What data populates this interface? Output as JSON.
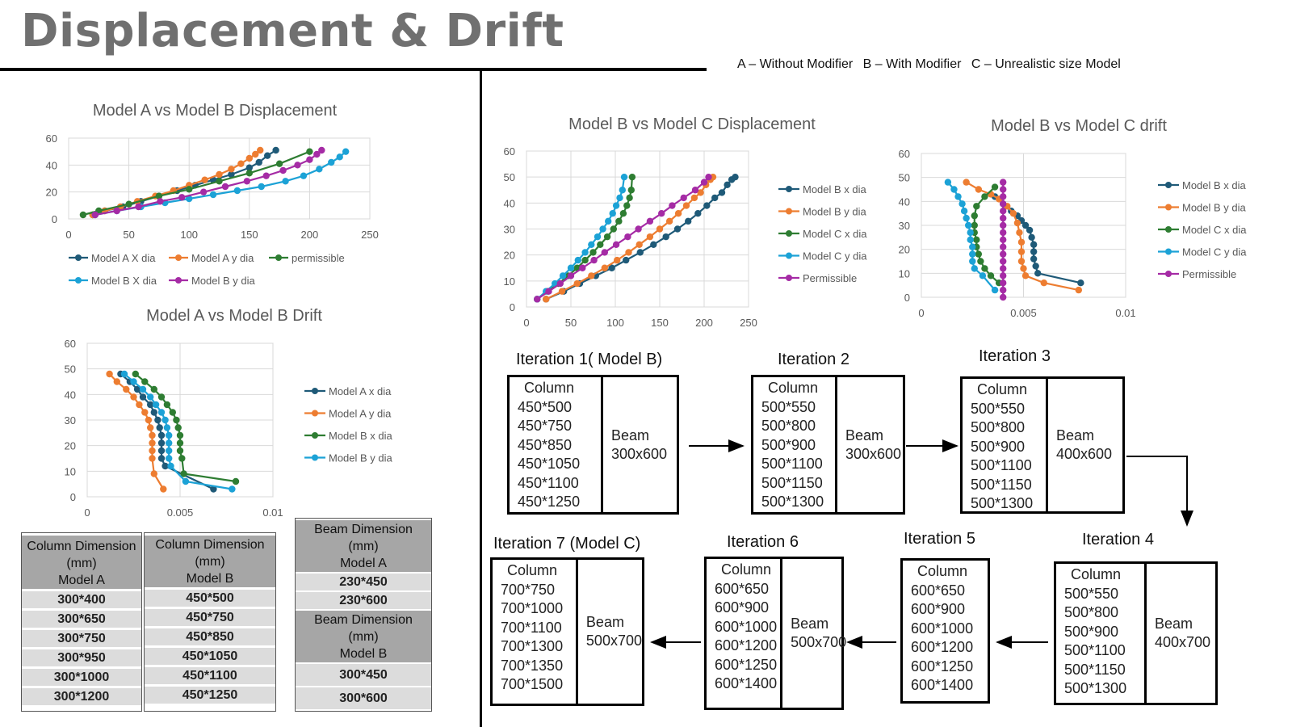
{
  "page": {
    "title": "Displacement & Drift",
    "legend": [
      "A – Without Modifier",
      "B – With Modifier",
      "C – Unrealistic size Model"
    ]
  },
  "colors": {
    "navy": "#1f5a78",
    "orange": "#ed7d31",
    "green": "#2e7d32",
    "cyan": "#1ca2d6",
    "purple": "#a52ba5",
    "grid": "#d9d9d9",
    "table_header": "#a6a6a6",
    "table_cell": "#dcdcdc"
  },
  "chart_data": [
    {
      "id": "ab_disp",
      "type": "line",
      "title": "Model A vs Model B Displacement",
      "xlim": [
        0,
        250
      ],
      "ylim": [
        0,
        60
      ],
      "xticks": [
        0,
        50,
        100,
        150,
        200,
        250
      ],
      "yticks": [
        0,
        20,
        40,
        60
      ],
      "grid": true,
      "legend_position": "bottom",
      "series": [
        {
          "name": "Model A X dia",
          "color": "#1f5a78",
          "x": [
            20,
            30,
            45,
            60,
            75,
            90,
            105,
            120,
            135,
            150,
            158,
            165,
            172
          ],
          "y": [
            3,
            6,
            9,
            13,
            17,
            21,
            25,
            29,
            33,
            38,
            42,
            47,
            51
          ]
        },
        {
          "name": "Model A y dia",
          "color": "#ed7d31",
          "x": [
            20,
            30,
            43,
            57,
            72,
            87,
            100,
            113,
            125,
            135,
            143,
            150,
            155,
            159
          ],
          "y": [
            3,
            6,
            9,
            13,
            17,
            21,
            25,
            29,
            33,
            37,
            41,
            45,
            48,
            51
          ]
        },
        {
          "name": "permissible",
          "color": "#2e7d32",
          "x": [
            12,
            25,
            50,
            75,
            100,
            125,
            150,
            175,
            200
          ],
          "y": [
            3,
            6,
            11,
            17,
            22,
            28,
            34,
            41,
            50
          ]
        },
        {
          "name": "Model B X dia",
          "color": "#1ca2d6",
          "x": [
            22,
            40,
            60,
            80,
            100,
            120,
            140,
            160,
            180,
            195,
            208,
            218,
            225,
            230
          ],
          "y": [
            3,
            6,
            9,
            12,
            15,
            18,
            21,
            24,
            28,
            32,
            37,
            42,
            46,
            50
          ]
        },
        {
          "name": "Model B y dia",
          "color": "#a52ba5",
          "x": [
            22,
            40,
            58,
            76,
            94,
            112,
            130,
            148,
            164,
            178,
            190,
            200,
            206,
            210
          ],
          "y": [
            3,
            6,
            9,
            13,
            16,
            20,
            24,
            28,
            32,
            36,
            40,
            44,
            48,
            51
          ]
        }
      ]
    },
    {
      "id": "ab_drift",
      "type": "line",
      "title": "Model A vs Model B Drift",
      "xlim": [
        0,
        0.01
      ],
      "ylim": [
        0,
        60
      ],
      "xticks": [
        0,
        0.005,
        0.01
      ],
      "yticks": [
        0,
        10,
        20,
        30,
        40,
        50,
        60
      ],
      "grid": true,
      "legend_position": "right",
      "series": [
        {
          "name": "Model A x dia",
          "color": "#1f5a78",
          "x": [
            0.0018,
            0.0023,
            0.0027,
            0.003,
            0.0034,
            0.0036,
            0.0038,
            0.0039,
            0.004,
            0.004,
            0.004,
            0.004,
            0.0042,
            0.0068
          ],
          "y": [
            48,
            45,
            42,
            39,
            36,
            33,
            30,
            27,
            24,
            21,
            18,
            15,
            12,
            3
          ]
        },
        {
          "name": "Model A y dia",
          "color": "#ed7d31",
          "x": [
            0.0012,
            0.0016,
            0.0021,
            0.0025,
            0.0028,
            0.0031,
            0.0033,
            0.0034,
            0.0035,
            0.0035,
            0.0035,
            0.0035,
            0.0036,
            0.0041
          ],
          "y": [
            48,
            45,
            42,
            39,
            36,
            33,
            30,
            27,
            24,
            21,
            18,
            15,
            9,
            3
          ]
        },
        {
          "name": "Model B x dia",
          "color": "#2e7d32",
          "x": [
            0.0026,
            0.0031,
            0.0036,
            0.004,
            0.0043,
            0.0046,
            0.0048,
            0.0049,
            0.005,
            0.005,
            0.005,
            0.0051,
            0.0052,
            0.008
          ],
          "y": [
            48,
            45,
            42,
            39,
            36,
            33,
            30,
            27,
            24,
            21,
            18,
            15,
            9,
            6
          ]
        },
        {
          "name": "Model B y dia",
          "color": "#1ca2d6",
          "x": [
            0.002,
            0.0025,
            0.003,
            0.0034,
            0.0037,
            0.004,
            0.0042,
            0.0043,
            0.0044,
            0.0044,
            0.0044,
            0.0044,
            0.0045,
            0.0053,
            0.0078
          ],
          "y": [
            48,
            45,
            42,
            39,
            36,
            33,
            30,
            27,
            24,
            21,
            18,
            15,
            12,
            6,
            3
          ]
        }
      ]
    },
    {
      "id": "bc_disp",
      "type": "line",
      "title": "Model B vs Model C Displacement",
      "xlim": [
        0,
        250
      ],
      "ylim": [
        0,
        60
      ],
      "xticks": [
        0,
        50,
        100,
        150,
        200,
        250
      ],
      "yticks": [
        0,
        10,
        20,
        30,
        40,
        50,
        60
      ],
      "grid": true,
      "legend_position": "right",
      "series": [
        {
          "name": "Model B x dia",
          "color": "#1f5a78",
          "x": [
            22,
            42,
            60,
            78,
            96,
            112,
            128,
            143,
            157,
            170,
            182,
            193,
            203,
            212,
            220,
            226,
            231,
            235
          ],
          "y": [
            3,
            6,
            9,
            12,
            15,
            18,
            21,
            24,
            27,
            30,
            33,
            36,
            39,
            42,
            44,
            47,
            49,
            50
          ]
        },
        {
          "name": "Model B y dia",
          "color": "#ed7d31",
          "x": [
            22,
            40,
            57,
            73,
            88,
            102,
            115,
            127,
            139,
            150,
            161,
            171,
            180,
            189,
            196,
            202,
            207,
            210
          ],
          "y": [
            3,
            6,
            9,
            12,
            15,
            18,
            21,
            24,
            27,
            30,
            33,
            36,
            39,
            42,
            44,
            47,
            49,
            50
          ]
        },
        {
          "name": "Model C x dia",
          "color": "#2e7d32",
          "x": [
            12,
            24,
            36,
            47,
            57,
            66,
            75,
            83,
            91,
            98,
            104,
            109,
            113,
            116,
            118,
            119
          ],
          "y": [
            3,
            6,
            9,
            12,
            15,
            18,
            21,
            24,
            27,
            30,
            33,
            36,
            39,
            42,
            45,
            50
          ]
        },
        {
          "name": "Model C y dia",
          "color": "#1ca2d6",
          "x": [
            12,
            22,
            32,
            41,
            50,
            58,
            66,
            73,
            80,
            86,
            92,
            97,
            101,
            105,
            108,
            110
          ],
          "y": [
            3,
            6,
            9,
            12,
            15,
            18,
            21,
            24,
            27,
            30,
            33,
            36,
            39,
            42,
            45,
            50
          ]
        },
        {
          "name": "Permissible",
          "color": "#a52ba5",
          "x": [
            12,
            25,
            38,
            50,
            63,
            76,
            88,
            101,
            114,
            126,
            139,
            152,
            164,
            177,
            190,
            200,
            205
          ],
          "y": [
            3,
            6,
            9,
            12,
            15,
            18,
            21,
            24,
            27,
            30,
            33,
            36,
            39,
            42,
            45,
            48,
            50
          ]
        }
      ]
    },
    {
      "id": "bc_drift",
      "type": "line",
      "title": "Model B vs Model C drift",
      "xlim": [
        0,
        0.01
      ],
      "ylim": [
        0,
        60
      ],
      "xticks": [
        0,
        0.005,
        0.01
      ],
      "yticks": [
        0,
        10,
        20,
        30,
        40,
        50,
        60
      ],
      "grid": true,
      "legend_position": "right",
      "series": [
        {
          "name": "Model B x dia",
          "color": "#1f5a78",
          "x": [
            0.0036,
            0.004,
            0.0044,
            0.0047,
            0.0049,
            0.0051,
            0.0053,
            0.0054,
            0.0055,
            0.0055,
            0.0055,
            0.0056,
            0.0057,
            0.0078
          ],
          "y": [
            42,
            39,
            36,
            34,
            32,
            30,
            28,
            25,
            22,
            19,
            16,
            13,
            10,
            6
          ]
        },
        {
          "name": "Model B y dia",
          "color": "#ed7d31",
          "x": [
            0.0022,
            0.0028,
            0.0034,
            0.0038,
            0.0042,
            0.0045,
            0.0047,
            0.0048,
            0.0049,
            0.0049,
            0.0049,
            0.005,
            0.0051,
            0.006,
            0.0077
          ],
          "y": [
            48,
            45,
            43,
            41,
            38,
            35,
            31,
            27,
            23,
            19,
            15,
            12,
            9,
            6,
            3
          ]
        },
        {
          "name": "Model C x dia",
          "color": "#2e7d32",
          "x": [
            0.0036,
            0.0031,
            0.0027,
            0.0026,
            0.0026,
            0.0026,
            0.0027,
            0.0027,
            0.0028,
            0.0029,
            0.0031,
            0.0034,
            0.0038
          ],
          "y": [
            46,
            42,
            38,
            34,
            30,
            27,
            24,
            21,
            18,
            15,
            12,
            9,
            6
          ]
        },
        {
          "name": "Model C y dia",
          "color": "#1ca2d6",
          "x": [
            0.0013,
            0.0016,
            0.0018,
            0.002,
            0.0021,
            0.0022,
            0.0023,
            0.0024,
            0.0024,
            0.0025,
            0.0025,
            0.0025,
            0.0026,
            0.003,
            0.0036
          ],
          "y": [
            48,
            45,
            42,
            39,
            36,
            33,
            30,
            27,
            24,
            21,
            18,
            15,
            12,
            9,
            3
          ]
        },
        {
          "name": "Permissible",
          "color": "#a52ba5",
          "x": [
            0.004,
            0.004,
            0.004,
            0.004,
            0.004,
            0.004,
            0.004,
            0.004,
            0.004,
            0.004,
            0.004,
            0.004,
            0.004,
            0.004,
            0.004,
            0.004,
            0.004
          ],
          "y": [
            48,
            45,
            42,
            39,
            36,
            33,
            30,
            27,
            24,
            21,
            18,
            15,
            12,
            9,
            6,
            3,
            0
          ]
        }
      ]
    }
  ],
  "tables": {
    "model_a": {
      "header": [
        "Column Dimension",
        "(mm)",
        "Model A"
      ],
      "rows": [
        "300*400",
        "300*650",
        "300*750",
        "300*950",
        "300*1000",
        "300*1200"
      ]
    },
    "model_b": {
      "header": [
        "Column Dimension",
        "(mm)",
        "Model B"
      ],
      "rows": [
        "450*500",
        "450*750",
        "450*850",
        "450*1050",
        "450*1100",
        "450*1250"
      ]
    },
    "beam_a": {
      "header": [
        "Beam Dimension",
        "(mm)",
        "Model A"
      ],
      "rows": [
        "230*450",
        "230*600"
      ]
    },
    "beam_b": {
      "header": [
        "Beam Dimension",
        "(mm)",
        "Model B"
      ],
      "rows": [
        "300*450",
        "300*600"
      ]
    }
  },
  "iterations": [
    {
      "title": "Iteration 1( Model B)",
      "column_label": "Column",
      "columns": [
        "450*500",
        "450*750",
        "450*850",
        "450*1050",
        "450*1100",
        "450*1250"
      ],
      "beam_label": "Beam",
      "beam": "300x600"
    },
    {
      "title": "Iteration 2",
      "column_label": "Column",
      "columns": [
        "500*550",
        "500*800",
        "500*900",
        "500*1100",
        "500*1150",
        "500*1300"
      ],
      "beam_label": "Beam",
      "beam": "300x600"
    },
    {
      "title": "Iteration 3",
      "column_label": "Column",
      "columns": [
        "500*550",
        "500*800",
        "500*900",
        "500*1100",
        "500*1150",
        "500*1300"
      ],
      "beam_label": "Beam",
      "beam": "400x600"
    },
    {
      "title": "Iteration 4",
      "column_label": "Column",
      "columns": [
        "500*550",
        "500*800",
        "500*900",
        "500*1100",
        "500*1150",
        "500*1300"
      ],
      "beam_label": "Beam",
      "beam": "400x700"
    },
    {
      "title": "Iteration 5",
      "column_label": "Column",
      "columns": [
        "600*650",
        "600*900",
        "600*1000",
        "600*1200",
        "600*1250",
        "600*1400"
      ],
      "beam_label": "",
      "beam": ""
    },
    {
      "title": "Iteration 6",
      "column_label": "Column",
      "columns": [
        "600*650",
        "600*900",
        "600*1000",
        "600*1200",
        "600*1250",
        "600*1400"
      ],
      "beam_label": "Beam",
      "beam": "500x700"
    },
    {
      "title": "Iteration 7 (Model C)",
      "column_label": "Column",
      "columns": [
        "700*750",
        "700*1000",
        "700*1100",
        "700*1300",
        "700*1350",
        "700*1500"
      ],
      "beam_label": "Beam",
      "beam": "500x700"
    }
  ]
}
